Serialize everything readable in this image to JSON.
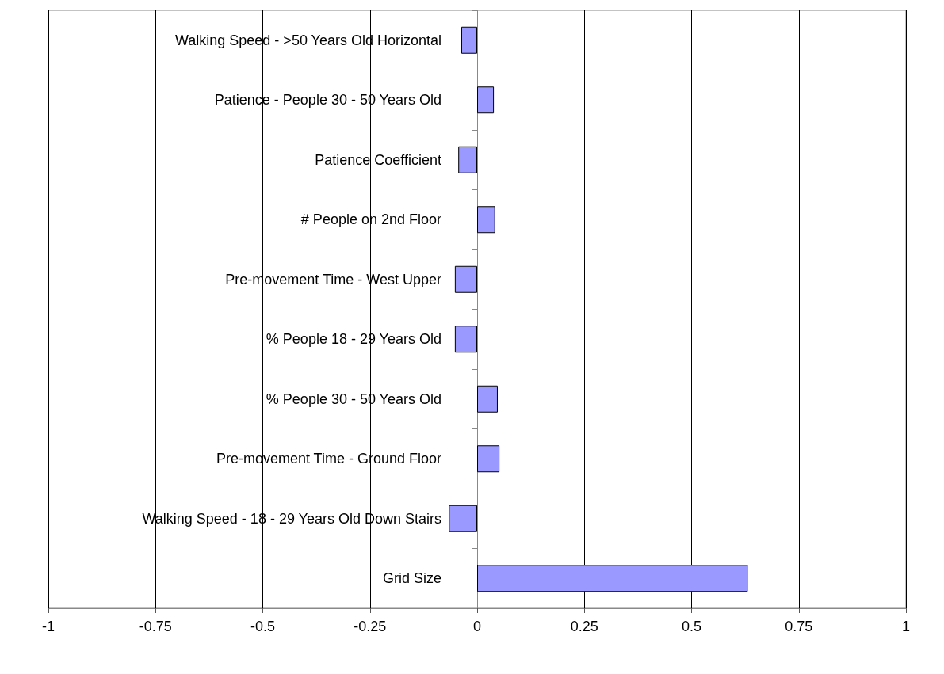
{
  "chart_data": {
    "type": "bar",
    "orientation": "horizontal",
    "categories": [
      "Walking Speed - >50 Years Old Horizontal",
      "Patience - People 30 - 50 Years Old",
      "Patience Coefficient",
      "# People on 2nd Floor",
      "Pre-movement Time - West Upper",
      "% People 18 - 29 Years Old",
      "% People 30 - 50 Years Old",
      "Pre-movement Time - Ground Floor",
      "Walking Speed - 18 - 29 Years Old Down Stairs",
      "Grid Size"
    ],
    "values": [
      -0.037,
      0.039,
      -0.044,
      0.042,
      -0.052,
      -0.052,
      0.048,
      0.052,
      -0.066,
      0.631
    ],
    "color": "#9999ff",
    "xlim": [
      -1,
      1
    ],
    "xticks": [
      -1,
      -0.75,
      -0.5,
      -0.25,
      0,
      0.25,
      0.5,
      0.75,
      1
    ],
    "grid": "x"
  }
}
